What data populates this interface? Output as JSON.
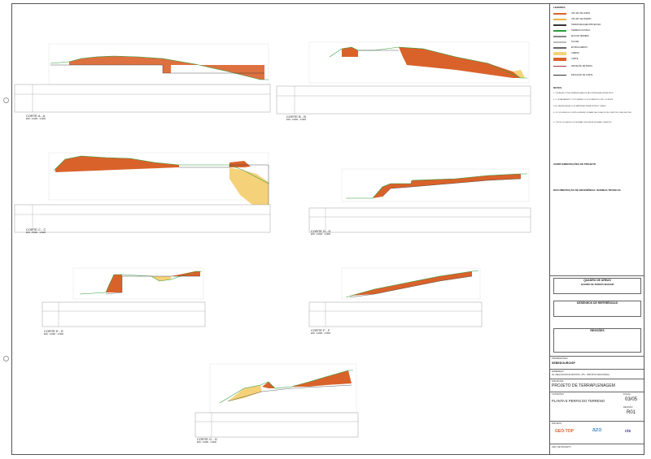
{
  "sections": [
    {
      "title": "CORTE A - A",
      "scale": "ESC. 1/1000 - 1/1000"
    },
    {
      "title": "CORTE B - B",
      "scale": "ESC. 1/1000 - 1/1000"
    },
    {
      "title": "CORTE C - C",
      "scale": "ESC. 1/1000 - 1/1000"
    },
    {
      "title": "CORTE D - D",
      "scale": "ESC. 1/1000 - 1/1000"
    },
    {
      "title": "CORTE E - E",
      "scale": "ESC. 1/1000 - 1/1000"
    },
    {
      "title": "CORTE F - F",
      "scale": "ESC. 1/1000 - 1/1000"
    },
    {
      "title": "CORTE G - G",
      "scale": "ESC. 1/1000 - 1/1000"
    }
  ],
  "colors": {
    "cut": "#d9622b",
    "fill": "#f5d27a",
    "natural": "#2e9e3b",
    "project": "#333333"
  },
  "legend": {
    "title": "LEGENDA",
    "items": [
      {
        "label": "OFF-SET DE CORTE",
        "color": "#d9622b"
      },
      {
        "label": "OFF-SET DE ATERRO",
        "color": "#e8b24a"
      },
      {
        "label": "TERRAPLENAGEM PROJETADA",
        "color": "#333333"
      },
      {
        "label": "TERRENO NATURAL",
        "color": "#2e9e3b"
      },
      {
        "label": "EIXO DE TERRENO",
        "color": "#888888"
      },
      {
        "label": "TALUDE",
        "color": "#bbbbbb"
      },
      {
        "label": "ENTROCAMENTO",
        "color": "#666666"
      },
      {
        "label": "ATERRO",
        "color": "#f5d27a"
      },
      {
        "label": "CORTE",
        "color": "#d9622b"
      }
    ],
    "symbols": [
      "PROJEÇÃO DE PERFIL",
      "INDICAÇÃO DE CORTE"
    ]
  },
  "notes": {
    "title": "NOTAS",
    "lines": [
      "1. TODAS AS COTAS DIMENSIONAIS ESTÃO EXPRESSAS EM METROS.",
      "2. O LEVANTAMENTO TOPOGRÁFICO FOI FORNECIDO PELO CLIENTE.",
      "3. A CLASSIFICAÇÃO DOS MATERIAIS SERÁ FEITA NO CAMPO.",
      "4. OS VOLUMES DE CORTE E ATERRO FORAM CALCULADOS PELO MÉTODO DAS SEÇÕES.",
      "5. TODOS OS SERVIÇOS DEVERÃO SEGUIR AS NORMAS VIGENTES."
    ],
    "complementary_title": "COMPLEMENTAÇÕES DO PROJETO",
    "normative_title": "DOCUMENTAÇÃO DE REFERÊNCIA: NORMAS TÉCNICAS"
  },
  "areas_table": {
    "title": "QUADRO DE ÁREAS",
    "subtitle": "QUADRO DE TERRAPLENAGEM"
  },
  "references_title": "DESENHOS DE REFERÊNCIAS",
  "revisions_title": "REVISÕES",
  "title_block": {
    "owner_label": "PROPRIETÁRIO",
    "owner": "SEBEDOURO/SP",
    "address_label": "ENDEREÇO",
    "address": "AV. DELFINO ROSA BATISTA, 375 - DISTRITO INDUSTRIAL",
    "discipline_label": "DISCIPLINA",
    "discipline": "PROJETO DE TERRAPLENAGEM",
    "content_label": "CONTEÚDO",
    "content": "PLANTA E PERFIS DO TERRENO",
    "sheet_label": "FOLHA",
    "sheet": "03/05",
    "revision_label": "REVISÃO",
    "revision": "R01",
    "design_label": "PROJETO",
    "brand_1": "GEO-TOP",
    "brand_2": "azo",
    "brand_3": "cte",
    "footer": "ARQ. DE PROJETO"
  }
}
